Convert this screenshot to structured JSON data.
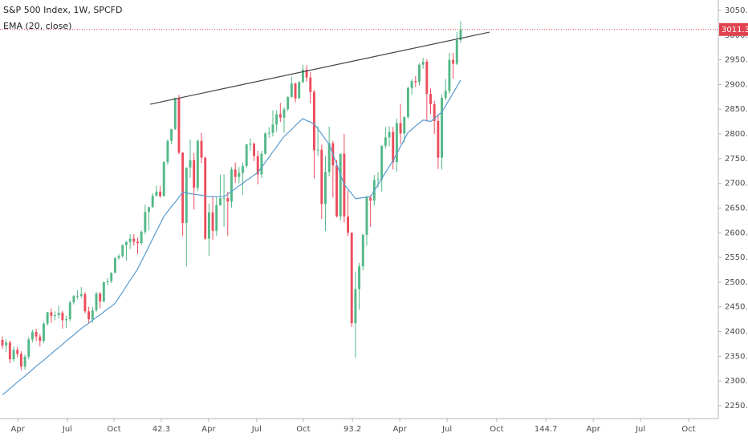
{
  "chart_data": {
    "type": "candlestick",
    "title": "S&P 500 Index, 1W, SPCFD",
    "up_color": "#53b987",
    "down_color": "#eb4d5c",
    "open": [
      2383,
      2372,
      2378,
      2344,
      2363,
      2355,
      2329,
      2349,
      2384,
      2399,
      2390,
      2381,
      2416,
      2439,
      2432,
      2433,
      2438,
      2423,
      2425,
      2459,
      2472,
      2472,
      2476,
      2441,
      2425,
      2443,
      2477,
      2461,
      2500,
      2502,
      2519,
      2549,
      2553,
      2575,
      2581,
      2588,
      2582,
      2579,
      2602,
      2642,
      2652,
      2675,
      2683,
      2674,
      2743,
      2786,
      2810,
      2873,
      2762,
      2620,
      2732,
      2747,
      2691,
      2786,
      2752,
      2588,
      2641,
      2604,
      2656,
      2670,
      2670,
      2663,
      2728,
      2713,
      2721,
      2735,
      2779,
      2780,
      2755,
      2718,
      2760,
      2801,
      2802,
      2819,
      2840,
      2833,
      2850,
      2875,
      2902,
      2872,
      2905,
      2930,
      2914,
      2885,
      2767,
      2768,
      2658,
      2723,
      2781,
      2736,
      2633,
      2760,
      2633,
      2600,
      2417,
      2486,
      2532,
      2596,
      2671,
      2665,
      2707,
      2708,
      2776,
      2793,
      2804,
      2743,
      2822,
      2801,
      2834,
      2893,
      2907,
      2905,
      2940,
      2946,
      2881,
      2860,
      2826,
      2752,
      2873,
      2887,
      2950,
      2942,
      2990
    ],
    "high": [
      2390,
      2385,
      2382,
      2370,
      2369,
      2360,
      2353,
      2389,
      2404,
      2406,
      2395,
      2419,
      2440,
      2447,
      2441,
      2453,
      2442,
      2432,
      2463,
      2474,
      2484,
      2490,
      2480,
      2450,
      2450,
      2480,
      2480,
      2501,
      2508,
      2520,
      2550,
      2557,
      2576,
      2583,
      2597,
      2597,
      2590,
      2605,
      2657,
      2652,
      2680,
      2695,
      2694,
      2745,
      2789,
      2810,
      2873,
      2879,
      2763,
      2732,
      2789,
      2761,
      2789,
      2802,
      2754,
      2659,
      2674,
      2672,
      2718,
      2718,
      2683,
      2733,
      2742,
      2733,
      2742,
      2779,
      2791,
      2783,
      2766,
      2766,
      2804,
      2814,
      2848,
      2848,
      2863,
      2854,
      2876,
      2916,
      2904,
      2907,
      2940,
      2939,
      2925,
      2889,
      2816,
      2778,
      2756,
      2815,
      2786,
      2747,
      2760,
      2800,
      2685,
      2601,
      2520,
      2539,
      2597,
      2675,
      2676,
      2717,
      2723,
      2776,
      2814,
      2815,
      2814,
      2831,
      2860,
      2836,
      2896,
      2911,
      2917,
      2943,
      2954,
      2951,
      2892,
      2867,
      2840,
      2880,
      2911,
      2964,
      2964,
      3006,
      3028
    ],
    "low": [
      2365,
      2358,
      2336,
      2339,
      2348,
      2322,
      2323,
      2344,
      2378,
      2381,
      2370,
      2377,
      2412,
      2418,
      2423,
      2426,
      2406,
      2407,
      2421,
      2455,
      2465,
      2468,
      2437,
      2417,
      2418,
      2440,
      2447,
      2459,
      2494,
      2498,
      2518,
      2545,
      2549,
      2544,
      2567,
      2574,
      2557,
      2575,
      2597,
      2605,
      2650,
      2673,
      2671,
      2682,
      2737,
      2779,
      2808,
      2759,
      2593,
      2532,
      2711,
      2647,
      2684,
      2741,
      2586,
      2553,
      2586,
      2594,
      2654,
      2612,
      2594,
      2651,
      2701,
      2700,
      2677,
      2731,
      2766,
      2745,
      2698,
      2711,
      2758,
      2792,
      2795,
      2804,
      2824,
      2802,
      2846,
      2873,
      2864,
      2871,
      2902,
      2906,
      2862,
      2710,
      2755,
      2628,
      2603,
      2714,
      2671,
      2631,
      2625,
      2621,
      2593,
      2409,
      2347,
      2444,
      2524,
      2574,
      2612,
      2655,
      2692,
      2683,
      2771,
      2775,
      2728,
      2723,
      2780,
      2783,
      2831,
      2879,
      2895,
      2898,
      2932,
      2825,
      2840,
      2800,
      2729,
      2728,
      2868,
      2881,
      2912,
      2939,
      2984
    ],
    "close": [
      2372,
      2378,
      2344,
      2363,
      2355,
      2329,
      2349,
      2384,
      2399,
      2390,
      2381,
      2416,
      2439,
      2432,
      2433,
      2438,
      2423,
      2425,
      2459,
      2472,
      2472,
      2476,
      2441,
      2425,
      2443,
      2477,
      2461,
      2500,
      2502,
      2519,
      2549,
      2553,
      2575,
      2581,
      2588,
      2582,
      2579,
      2602,
      2642,
      2652,
      2675,
      2683,
      2674,
      2743,
      2786,
      2810,
      2873,
      2762,
      2620,
      2732,
      2747,
      2691,
      2786,
      2752,
      2588,
      2641,
      2604,
      2656,
      2670,
      2670,
      2663,
      2728,
      2713,
      2721,
      2735,
      2779,
      2780,
      2755,
      2718,
      2760,
      2801,
      2802,
      2819,
      2840,
      2833,
      2850,
      2875,
      2902,
      2872,
      2905,
      2930,
      2914,
      2885,
      2767,
      2768,
      2658,
      2723,
      2781,
      2736,
      2633,
      2760,
      2633,
      2600,
      2417,
      2486,
      2532,
      2596,
      2671,
      2665,
      2707,
      2708,
      2776,
      2793,
      2804,
      2743,
      2822,
      2801,
      2834,
      2893,
      2907,
      2905,
      2940,
      2946,
      2881,
      2860,
      2826,
      2752,
      2873,
      2887,
      2950,
      2942,
      2990,
      3011.3
    ],
    "series": [
      {
        "name": "EMA (20, close)",
        "color": "#5a9bd0",
        "values": [
          2272,
          2278,
          2285,
          2291,
          2298,
          2304,
          2310,
          2317,
          2323,
          2330,
          2336,
          2342,
          2349,
          2355,
          2362,
          2368,
          2374,
          2381,
          2387,
          2393,
          2400,
          2406,
          2412,
          2417,
          2423,
          2429,
          2434,
          2440,
          2446,
          2451,
          2457,
          2469,
          2480,
          2492,
          2504,
          2515,
          2527,
          2542,
          2557,
          2572,
          2588,
          2603,
          2618,
          2633,
          2643,
          2653,
          2662,
          2672,
          2682,
          2681,
          2679,
          2678,
          2677,
          2676,
          2674,
          2673,
          2673,
          2673,
          2673,
          2673,
          2678,
          2684,
          2689,
          2695,
          2700,
          2706,
          2711,
          2717,
          2722,
          2732,
          2743,
          2753,
          2764,
          2774,
          2785,
          2795,
          2802,
          2809,
          2817,
          2824,
          2831,
          2827,
          2824,
          2820,
          2810,
          2800,
          2789,
          2779,
          2759,
          2739,
          2718,
          2698,
          2688,
          2679,
          2669,
          2670,
          2671,
          2672,
          2673,
          2685,
          2697,
          2710,
          2722,
          2734,
          2746,
          2760,
          2775,
          2789,
          2803,
          2809,
          2816,
          2822,
          2828,
          2827,
          2825,
          2831,
          2838,
          2844,
          2857,
          2870,
          2883,
          2896,
          2909
        ]
      }
    ],
    "trend_line": {
      "x": [
        39.3,
        129.7
      ],
      "y": [
        2860,
        3006
      ],
      "color": "#444444"
    },
    "last_price_color": "#e0434f",
    "xlim": [
      -0.64,
      190.6
    ],
    "xticks": [
      {
        "value": 4.1,
        "label": "Apr"
      },
      {
        "value": 17.3,
        "label": "Jul"
      },
      {
        "value": 29.7,
        "label": "Oct"
      },
      42.3,
      {
        "value": 54.9,
        "label": "Apr"
      },
      {
        "value": 67.7,
        "label": "Jul"
      },
      {
        "value": 80.1,
        "label": "Oct"
      },
      93.2,
      {
        "value": 105.8,
        "label": "Apr"
      },
      {
        "value": 118.4,
        "label": "Jul"
      },
      {
        "value": 131.6,
        "label": "Oct"
      },
      144.7,
      {
        "value": 157.3,
        "label": "Apr"
      },
      {
        "value": 169.9,
        "label": "Jul"
      },
      {
        "value": 182.7,
        "label": "Oct"
      }
    ],
    "ylim": [
      2224,
      3071
    ],
    "yticks": [
      {
        "value": 2250,
        "label": "2250.0"
      },
      {
        "value": 2300,
        "label": "2300.0"
      },
      {
        "value": 2350,
        "label": "2350.0"
      },
      {
        "value": 2400,
        "label": "2400.0"
      },
      {
        "value": 2450,
        "label": "2450.0"
      },
      {
        "value": 2500,
        "label": "2500.0"
      },
      {
        "value": 2550,
        "label": "2550.0"
      },
      {
        "value": 2600,
        "label": "2600.0"
      },
      {
        "value": 2650,
        "label": "2650.0"
      },
      {
        "value": 2700,
        "label": "2700.0"
      },
      {
        "value": 2750,
        "label": "2750.0"
      },
      {
        "value": 2800,
        "label": "2800.0"
      },
      {
        "value": 2850,
        "label": "2850.0"
      },
      {
        "value": 2900,
        "label": "2900.0"
      },
      {
        "value": 2950,
        "label": "2950.0"
      },
      {
        "value": 3000,
        "label": "3000.0"
      },
      {
        "value": 3050,
        "label": "3050.0"
      }
    ]
  }
}
